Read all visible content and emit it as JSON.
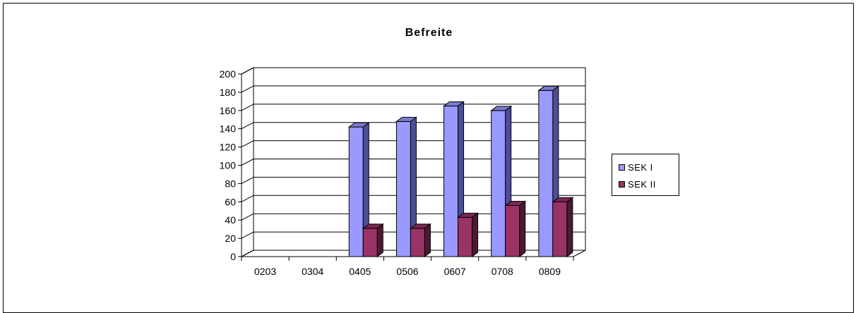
{
  "chart_data": {
    "type": "bar",
    "title": "Befreite",
    "categories": [
      "0203",
      "0304",
      "0405",
      "0506",
      "0607",
      "0708",
      "0809"
    ],
    "series": [
      {
        "name": "SEK I",
        "values": [
          0,
          0,
          142,
          148,
          165,
          160,
          182
        ],
        "color": "#9999ff",
        "side_color": "#4d4d99",
        "top_color": "#7a7acc"
      },
      {
        "name": "SEK II",
        "values": [
          0,
          0,
          31,
          31,
          43,
          56,
          60
        ],
        "color": "#993366",
        "side_color": "#4c1933",
        "top_color": "#7a2952"
      }
    ],
    "y_ticks": [
      "0",
      "20",
      "40",
      "60",
      "80",
      "100",
      "120",
      "140",
      "160",
      "180",
      "200"
    ],
    "ylim": [
      0,
      200
    ],
    "grid": true,
    "three_d": true,
    "legend_position": "right"
  }
}
